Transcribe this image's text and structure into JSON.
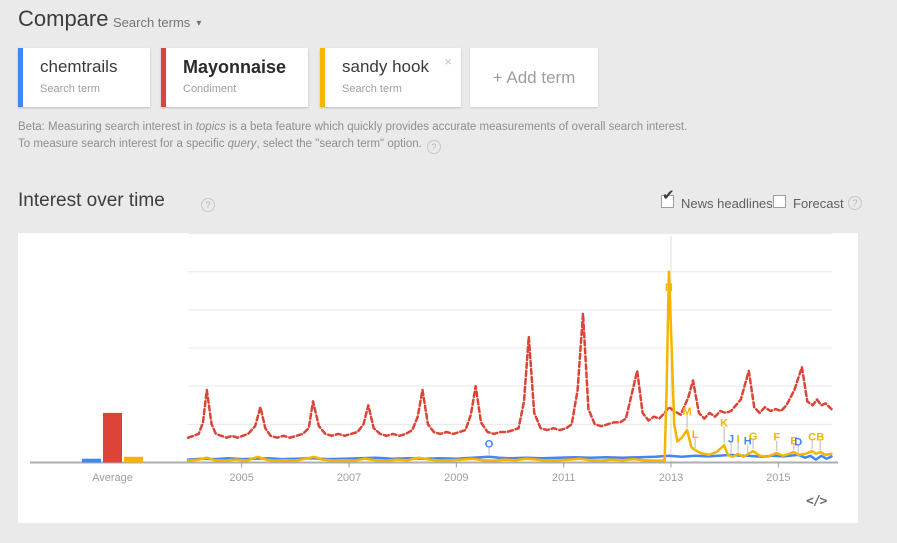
{
  "header": {
    "title": "Compare",
    "subtitle": "Search terms"
  },
  "terms": [
    {
      "label": "chemtrails",
      "type": "Search term",
      "color": "#4285f4"
    },
    {
      "label": "Mayonnaise",
      "type": "Condiment",
      "color": "#db4437"
    },
    {
      "label": "sandy hook",
      "type": "Search term",
      "color": "#f4b400"
    }
  ],
  "add_term_label": "+ Add term",
  "close_label": "×",
  "help_label": "?",
  "beta_note": {
    "segments": [
      {
        "t": "Beta: Measuring search interest in "
      },
      {
        "t": "topics",
        "i": true
      },
      {
        "t": " is a beta feature which quickly provides accurate measurements of overall search interest. To measure search interest for a specific "
      },
      {
        "t": "query",
        "i": true
      },
      {
        "t": ", select the \"search term\" option."
      }
    ]
  },
  "section": {
    "title": "Interest over time"
  },
  "controls": {
    "news_headlines": {
      "label": "News headlines",
      "checked": true
    },
    "forecast": {
      "label": "Forecast",
      "checked": false
    }
  },
  "checkmark_glyph": "✔",
  "dropdown_caret": "▾",
  "embed_label": "</>",
  "chart_data": {
    "type": "line",
    "title": "Interest over time",
    "x_range": [
      2004,
      2016
    ],
    "x_ticks": [
      "2005",
      "2007",
      "2009",
      "2011",
      "2013",
      "2015"
    ],
    "y_range": [
      0,
      100
    ],
    "y_grid_step": 20,
    "grid": true,
    "average_label": "Average",
    "hover_line_x": 2013.0,
    "series": [
      {
        "name": "chemtrails",
        "color": "#4285f4",
        "dash": false,
        "average": 2,
        "points": [
          [
            2004.0,
            1.5
          ],
          [
            2004.25,
            2
          ],
          [
            2004.5,
            1.8
          ],
          [
            2004.75,
            2.2
          ],
          [
            2005.0,
            1.8
          ],
          [
            2005.25,
            2
          ],
          [
            2005.5,
            2.2
          ],
          [
            2005.75,
            1.8
          ],
          [
            2006.0,
            2
          ],
          [
            2006.3,
            2.2
          ],
          [
            2006.6,
            1.8
          ],
          [
            2006.9,
            2
          ],
          [
            2007.2,
            2.2
          ],
          [
            2007.5,
            2.5
          ],
          [
            2007.8,
            2
          ],
          [
            2008.1,
            2.2
          ],
          [
            2008.4,
            2
          ],
          [
            2008.7,
            2.2
          ],
          [
            2009.0,
            2
          ],
          [
            2009.3,
            2.5
          ],
          [
            2009.61,
            3
          ],
          [
            2009.8,
            2.5
          ],
          [
            2010.0,
            2.2
          ],
          [
            2010.3,
            2.5
          ],
          [
            2010.6,
            2.2
          ],
          [
            2010.9,
            2.5
          ],
          [
            2011.2,
            2.8
          ],
          [
            2011.5,
            2.5
          ],
          [
            2011.8,
            2.8
          ],
          [
            2012.1,
            2.5
          ],
          [
            2012.4,
            2.8
          ],
          [
            2012.7,
            3
          ],
          [
            2012.96,
            3.5
          ],
          [
            2013.2,
            3
          ],
          [
            2013.45,
            3.5
          ],
          [
            2013.7,
            3.2
          ],
          [
            2014.12,
            4
          ],
          [
            2014.3,
            3.5
          ],
          [
            2014.43,
            3.5
          ],
          [
            2014.7,
            3
          ],
          [
            2014.9,
            3.5
          ],
          [
            2015.1,
            3.2
          ],
          [
            2015.37,
            4
          ],
          [
            2015.5,
            2.5
          ],
          [
            2015.6,
            3.5
          ],
          [
            2015.7,
            1.5
          ],
          [
            2015.8,
            3.5
          ],
          [
            2015.9,
            2
          ],
          [
            2015.99,
            3.2
          ]
        ]
      },
      {
        "name": "Mayonnaise",
        "color": "#db4437",
        "dash": true,
        "average": 26,
        "points": [
          [
            2004.0,
            13
          ],
          [
            2004.1,
            14
          ],
          [
            2004.2,
            15
          ],
          [
            2004.28,
            21
          ],
          [
            2004.35,
            38
          ],
          [
            2004.44,
            20
          ],
          [
            2004.52,
            15
          ],
          [
            2004.62,
            14
          ],
          [
            2004.72,
            13
          ],
          [
            2004.82,
            14
          ],
          [
            2004.92,
            13
          ],
          [
            2005.02,
            14
          ],
          [
            2005.12,
            15
          ],
          [
            2005.25,
            19
          ],
          [
            2005.35,
            29
          ],
          [
            2005.44,
            18
          ],
          [
            2005.54,
            14
          ],
          [
            2005.66,
            13
          ],
          [
            2005.78,
            14
          ],
          [
            2005.9,
            13
          ],
          [
            2006.02,
            14
          ],
          [
            2006.14,
            15
          ],
          [
            2006.25,
            18
          ],
          [
            2006.33,
            32
          ],
          [
            2006.44,
            19
          ],
          [
            2006.56,
            15
          ],
          [
            2006.68,
            14
          ],
          [
            2006.8,
            15
          ],
          [
            2006.92,
            14
          ],
          [
            2007.04,
            15
          ],
          [
            2007.16,
            16
          ],
          [
            2007.27,
            20
          ],
          [
            2007.36,
            30
          ],
          [
            2007.46,
            18
          ],
          [
            2007.58,
            15
          ],
          [
            2007.7,
            14
          ],
          [
            2007.82,
            15
          ],
          [
            2007.94,
            14
          ],
          [
            2008.06,
            15
          ],
          [
            2008.18,
            17
          ],
          [
            2008.28,
            24
          ],
          [
            2008.37,
            38
          ],
          [
            2008.47,
            20
          ],
          [
            2008.58,
            16
          ],
          [
            2008.7,
            15
          ],
          [
            2008.82,
            16
          ],
          [
            2008.94,
            15
          ],
          [
            2009.06,
            16
          ],
          [
            2009.17,
            17
          ],
          [
            2009.27,
            25
          ],
          [
            2009.36,
            40
          ],
          [
            2009.46,
            21
          ],
          [
            2009.58,
            16
          ],
          [
            2009.7,
            15
          ],
          [
            2009.82,
            16
          ],
          [
            2009.94,
            16
          ],
          [
            2010.06,
            17
          ],
          [
            2010.16,
            18
          ],
          [
            2010.26,
            32
          ],
          [
            2010.35,
            66
          ],
          [
            2010.45,
            26
          ],
          [
            2010.57,
            18
          ],
          [
            2010.69,
            17
          ],
          [
            2010.81,
            18
          ],
          [
            2010.93,
            17
          ],
          [
            2011.05,
            18
          ],
          [
            2011.15,
            20
          ],
          [
            2011.26,
            38
          ],
          [
            2011.36,
            78
          ],
          [
            2011.46,
            28
          ],
          [
            2011.58,
            20
          ],
          [
            2011.7,
            19
          ],
          [
            2011.82,
            20
          ],
          [
            2011.93,
            21
          ],
          [
            2012.05,
            21
          ],
          [
            2012.16,
            23
          ],
          [
            2012.27,
            36
          ],
          [
            2012.37,
            48
          ],
          [
            2012.47,
            26
          ],
          [
            2012.58,
            22
          ],
          [
            2012.68,
            24
          ],
          [
            2012.78,
            23
          ],
          [
            2012.88,
            26
          ],
          [
            2012.96,
            29
          ],
          [
            2013.06,
            27
          ],
          [
            2013.18,
            25
          ],
          [
            2013.32,
            34
          ],
          [
            2013.41,
            43
          ],
          [
            2013.52,
            26
          ],
          [
            2013.62,
            23
          ],
          [
            2013.72,
            26
          ],
          [
            2013.82,
            24
          ],
          [
            2013.92,
            27
          ],
          [
            2014.02,
            26
          ],
          [
            2014.12,
            27
          ],
          [
            2014.3,
            33
          ],
          [
            2014.45,
            48
          ],
          [
            2014.55,
            29
          ],
          [
            2014.65,
            26
          ],
          [
            2014.75,
            29
          ],
          [
            2014.85,
            27
          ],
          [
            2014.95,
            28
          ],
          [
            2015.05,
            27
          ],
          [
            2015.15,
            30
          ],
          [
            2015.3,
            38
          ],
          [
            2015.44,
            50
          ],
          [
            2015.54,
            32
          ],
          [
            2015.64,
            30
          ],
          [
            2015.72,
            33
          ],
          [
            2015.8,
            30
          ],
          [
            2015.88,
            31
          ],
          [
            2015.99,
            28
          ]
        ]
      },
      {
        "name": "sandy hook",
        "color": "#f4b400",
        "dash": false,
        "average": 3,
        "points": [
          [
            2004.0,
            1
          ],
          [
            2004.2,
            1.5
          ],
          [
            2004.35,
            2.5
          ],
          [
            2004.5,
            1.2
          ],
          [
            2004.7,
            1
          ],
          [
            2004.9,
            1.5
          ],
          [
            2005.1,
            1
          ],
          [
            2005.3,
            3
          ],
          [
            2005.45,
            1.5
          ],
          [
            2005.6,
            1
          ],
          [
            2005.8,
            1.2
          ],
          [
            2006.0,
            1
          ],
          [
            2006.2,
            2
          ],
          [
            2006.35,
            3
          ],
          [
            2006.5,
            1.5
          ],
          [
            2006.7,
            1
          ],
          [
            2006.9,
            1.2
          ],
          [
            2007.1,
            1
          ],
          [
            2007.3,
            2
          ],
          [
            2007.5,
            1.2
          ],
          [
            2007.7,
            1
          ],
          [
            2007.9,
            1.5
          ],
          [
            2008.1,
            1.2
          ],
          [
            2008.3,
            2.5
          ],
          [
            2008.5,
            1.5
          ],
          [
            2008.7,
            1
          ],
          [
            2008.9,
            1.2
          ],
          [
            2009.1,
            1.5
          ],
          [
            2009.3,
            2
          ],
          [
            2009.5,
            1.2
          ],
          [
            2009.7,
            1
          ],
          [
            2009.9,
            1.5
          ],
          [
            2010.1,
            1.2
          ],
          [
            2010.3,
            2
          ],
          [
            2010.5,
            1.5
          ],
          [
            2010.7,
            1
          ],
          [
            2010.9,
            1.2
          ],
          [
            2011.1,
            1.5
          ],
          [
            2011.3,
            2
          ],
          [
            2011.5,
            1.2
          ],
          [
            2011.7,
            1
          ],
          [
            2011.9,
            1.5
          ],
          [
            2012.1,
            1.2
          ],
          [
            2012.3,
            1.8
          ],
          [
            2012.5,
            1.2
          ],
          [
            2012.65,
            1
          ],
          [
            2012.8,
            1
          ],
          [
            2012.88,
            1
          ],
          [
            2012.92,
            40
          ],
          [
            2012.96,
            100
          ],
          [
            2013.0,
            70
          ],
          [
            2013.06,
            20
          ],
          [
            2013.12,
            11
          ],
          [
            2013.2,
            13
          ],
          [
            2013.3,
            17
          ],
          [
            2013.38,
            8
          ],
          [
            2013.45,
            6.5
          ],
          [
            2013.55,
            5
          ],
          [
            2013.7,
            4
          ],
          [
            2013.85,
            5.5
          ],
          [
            2013.99,
            9
          ],
          [
            2014.06,
            4
          ],
          [
            2014.15,
            3
          ],
          [
            2014.25,
            4.5
          ],
          [
            2014.35,
            3
          ],
          [
            2014.53,
            6
          ],
          [
            2014.65,
            3.5
          ],
          [
            2014.8,
            3
          ],
          [
            2014.97,
            5
          ],
          [
            2015.08,
            3.5
          ],
          [
            2015.2,
            4.5
          ],
          [
            2015.29,
            5.5
          ],
          [
            2015.38,
            4
          ],
          [
            2015.5,
            4.5
          ],
          [
            2015.63,
            6
          ],
          [
            2015.7,
            4.5
          ],
          [
            2015.78,
            5.5
          ],
          [
            2015.88,
            4
          ],
          [
            2015.99,
            4.5
          ]
        ]
      }
    ],
    "news_markers": [
      {
        "letter": "O",
        "series": "chemtrails",
        "x": 2009.61,
        "value": 3,
        "label_value": 10
      },
      {
        "letter": "N",
        "series": "sandy hook",
        "x": 2012.96,
        "value": 100,
        "label_value": 92
      },
      {
        "letter": "M",
        "series": "sandy hook",
        "x": 2013.3,
        "value": 17,
        "label_value": 27
      },
      {
        "letter": "L",
        "series": "sandy hook",
        "x": 2013.45,
        "value": 6.5,
        "label_value": 15
      },
      {
        "letter": "K",
        "series": "sandy hook",
        "x": 2013.99,
        "value": 9,
        "label_value": 21
      },
      {
        "letter": "J",
        "series": "chemtrails",
        "x": 2014.12,
        "value": 4,
        "label_value": 12.5
      },
      {
        "letter": "I",
        "series": "sandy hook",
        "x": 2014.25,
        "value": 4.5,
        "label_value": 12.5
      },
      {
        "letter": "H",
        "series": "chemtrails",
        "x": 2014.43,
        "value": 3.5,
        "label_value": 11.5
      },
      {
        "letter": "G",
        "series": "sandy hook",
        "x": 2014.53,
        "value": 6,
        "label_value": 14
      },
      {
        "letter": "F",
        "series": "sandy hook",
        "x": 2014.97,
        "value": 5,
        "label_value": 13.5
      },
      {
        "letter": "E",
        "series": "sandy hook",
        "x": 2015.29,
        "value": 5.5,
        "label_value": 11.5
      },
      {
        "letter": "D",
        "series": "chemtrails",
        "x": 2015.37,
        "value": 4,
        "label_value": 11
      },
      {
        "letter": "C",
        "series": "sandy hook",
        "x": 2015.63,
        "value": 6,
        "label_value": 13.5
      },
      {
        "letter": "B",
        "series": "sandy hook",
        "x": 2015.78,
        "value": 5.5,
        "label_value": 13.5
      }
    ]
  }
}
